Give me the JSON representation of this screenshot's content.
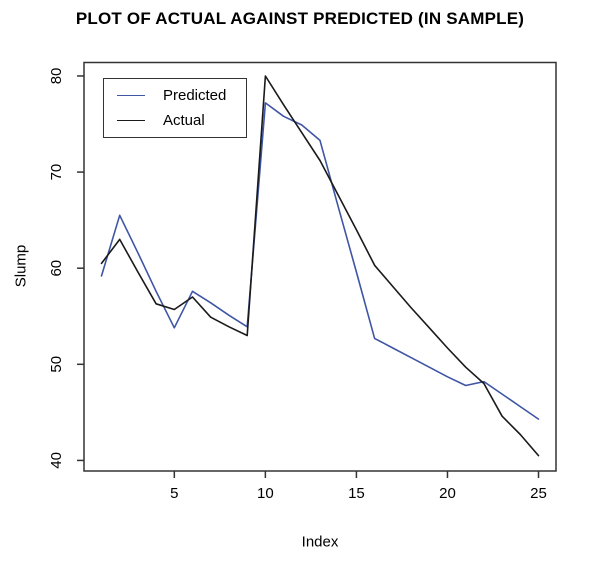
{
  "chart_data": {
    "type": "line",
    "title": "PLOT OF ACTUAL AGAINST PREDICTED (IN SAMPLE)",
    "xlabel": "Index",
    "ylabel": "Slump",
    "x": [
      1,
      2,
      3,
      4,
      5,
      6,
      7,
      8,
      9,
      10,
      11,
      12,
      13,
      14,
      15,
      16,
      17,
      18,
      19,
      20,
      21,
      22,
      23,
      24,
      25
    ],
    "series": [
      {
        "name": "Predicted",
        "color": "#3F55A5",
        "values": [
          59.2,
          65.5,
          61.6,
          57.6,
          53.8,
          57.6,
          56.4,
          55.1,
          53.9,
          77.2,
          75.8,
          74.9,
          73.3,
          66.4,
          59.6,
          52.7,
          51.7,
          50.7,
          49.7,
          48.7,
          47.8,
          48.2,
          46.9,
          45.6,
          44.3
        ]
      },
      {
        "name": "Actual",
        "color": "#1A1A1A",
        "values": [
          60.5,
          63.0,
          59.6,
          56.3,
          55.7,
          57.0,
          54.9,
          53.9,
          53.0,
          80.0,
          77.0,
          74.1,
          71.2,
          67.6,
          64.0,
          60.3,
          58.1,
          55.9,
          53.8,
          51.7,
          49.7,
          48.0,
          44.6,
          42.7,
          40.5
        ]
      }
    ],
    "xticks": [
      5,
      10,
      15,
      20,
      25
    ],
    "yticks": [
      40,
      50,
      60,
      70,
      80
    ],
    "xlim": [
      0.04,
      25.96
    ],
    "ylim": [
      38.9,
      81.4
    ],
    "grid": false,
    "legend_position": "top-left",
    "legend_labels": [
      "Predicted",
      "Actual"
    ],
    "axis_color": "#333333",
    "background": "#FFFFFF"
  }
}
